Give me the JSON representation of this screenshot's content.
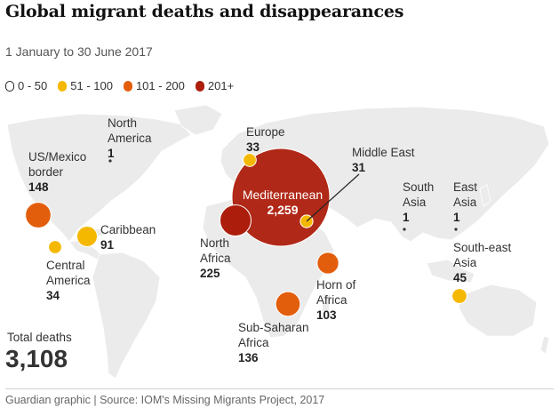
{
  "title": "Global migrant deaths and disappearances",
  "subtitle": "1 January to 30 June 2017",
  "legend": [
    {
      "label": "0 - 50",
      "color": "#ffffff"
    },
    {
      "label": "51 - 100",
      "color": "#f5b800"
    },
    {
      "label": "101 - 200",
      "color": "#e35e0c"
    },
    {
      "label": "201+",
      "color": "#ad1d0c"
    }
  ],
  "colors": {
    "land": "#ebebeb",
    "low": "#ffffff",
    "mid": "#f5b800",
    "high": "#e35e0c",
    "top": "#ad1d0c"
  },
  "regions": [
    {
      "id": "north-america",
      "name_lines": [
        "North",
        "America"
      ],
      "value": "1"
    },
    {
      "id": "us-mexico-border",
      "name_lines": [
        "US/Mexico",
        "border"
      ],
      "value": "148"
    },
    {
      "id": "caribbean",
      "name_lines": [
        "Caribbean"
      ],
      "value": "91"
    },
    {
      "id": "central-america",
      "name_lines": [
        "Central",
        "America"
      ],
      "value": "34"
    },
    {
      "id": "europe",
      "name_lines": [
        "Europe"
      ],
      "value": "33"
    },
    {
      "id": "mediterranean",
      "name_lines": [
        "Mediterranean"
      ],
      "value": "2,259"
    },
    {
      "id": "middle-east",
      "name_lines": [
        "Middle East"
      ],
      "value": "31"
    },
    {
      "id": "north-africa",
      "name_lines": [
        "North",
        "Africa"
      ],
      "value": "225"
    },
    {
      "id": "horn-of-africa",
      "name_lines": [
        "Horn of",
        "Africa"
      ],
      "value": "103"
    },
    {
      "id": "sub-saharan-africa",
      "name_lines": [
        "Sub-Saharan",
        "Africa"
      ],
      "value": "136"
    },
    {
      "id": "south-asia",
      "name_lines": [
        "South",
        "Asia"
      ],
      "value": "1"
    },
    {
      "id": "east-asia",
      "name_lines": [
        "East",
        "Asia"
      ],
      "value": "1"
    },
    {
      "id": "south-east-asia",
      "name_lines": [
        "South-east",
        "Asia"
      ],
      "value": "45"
    }
  ],
  "total": {
    "label": "Total deaths",
    "value": "3,108"
  },
  "source": "Guardian graphic | Source: IOM's Missing Migrants Project, 2017"
}
